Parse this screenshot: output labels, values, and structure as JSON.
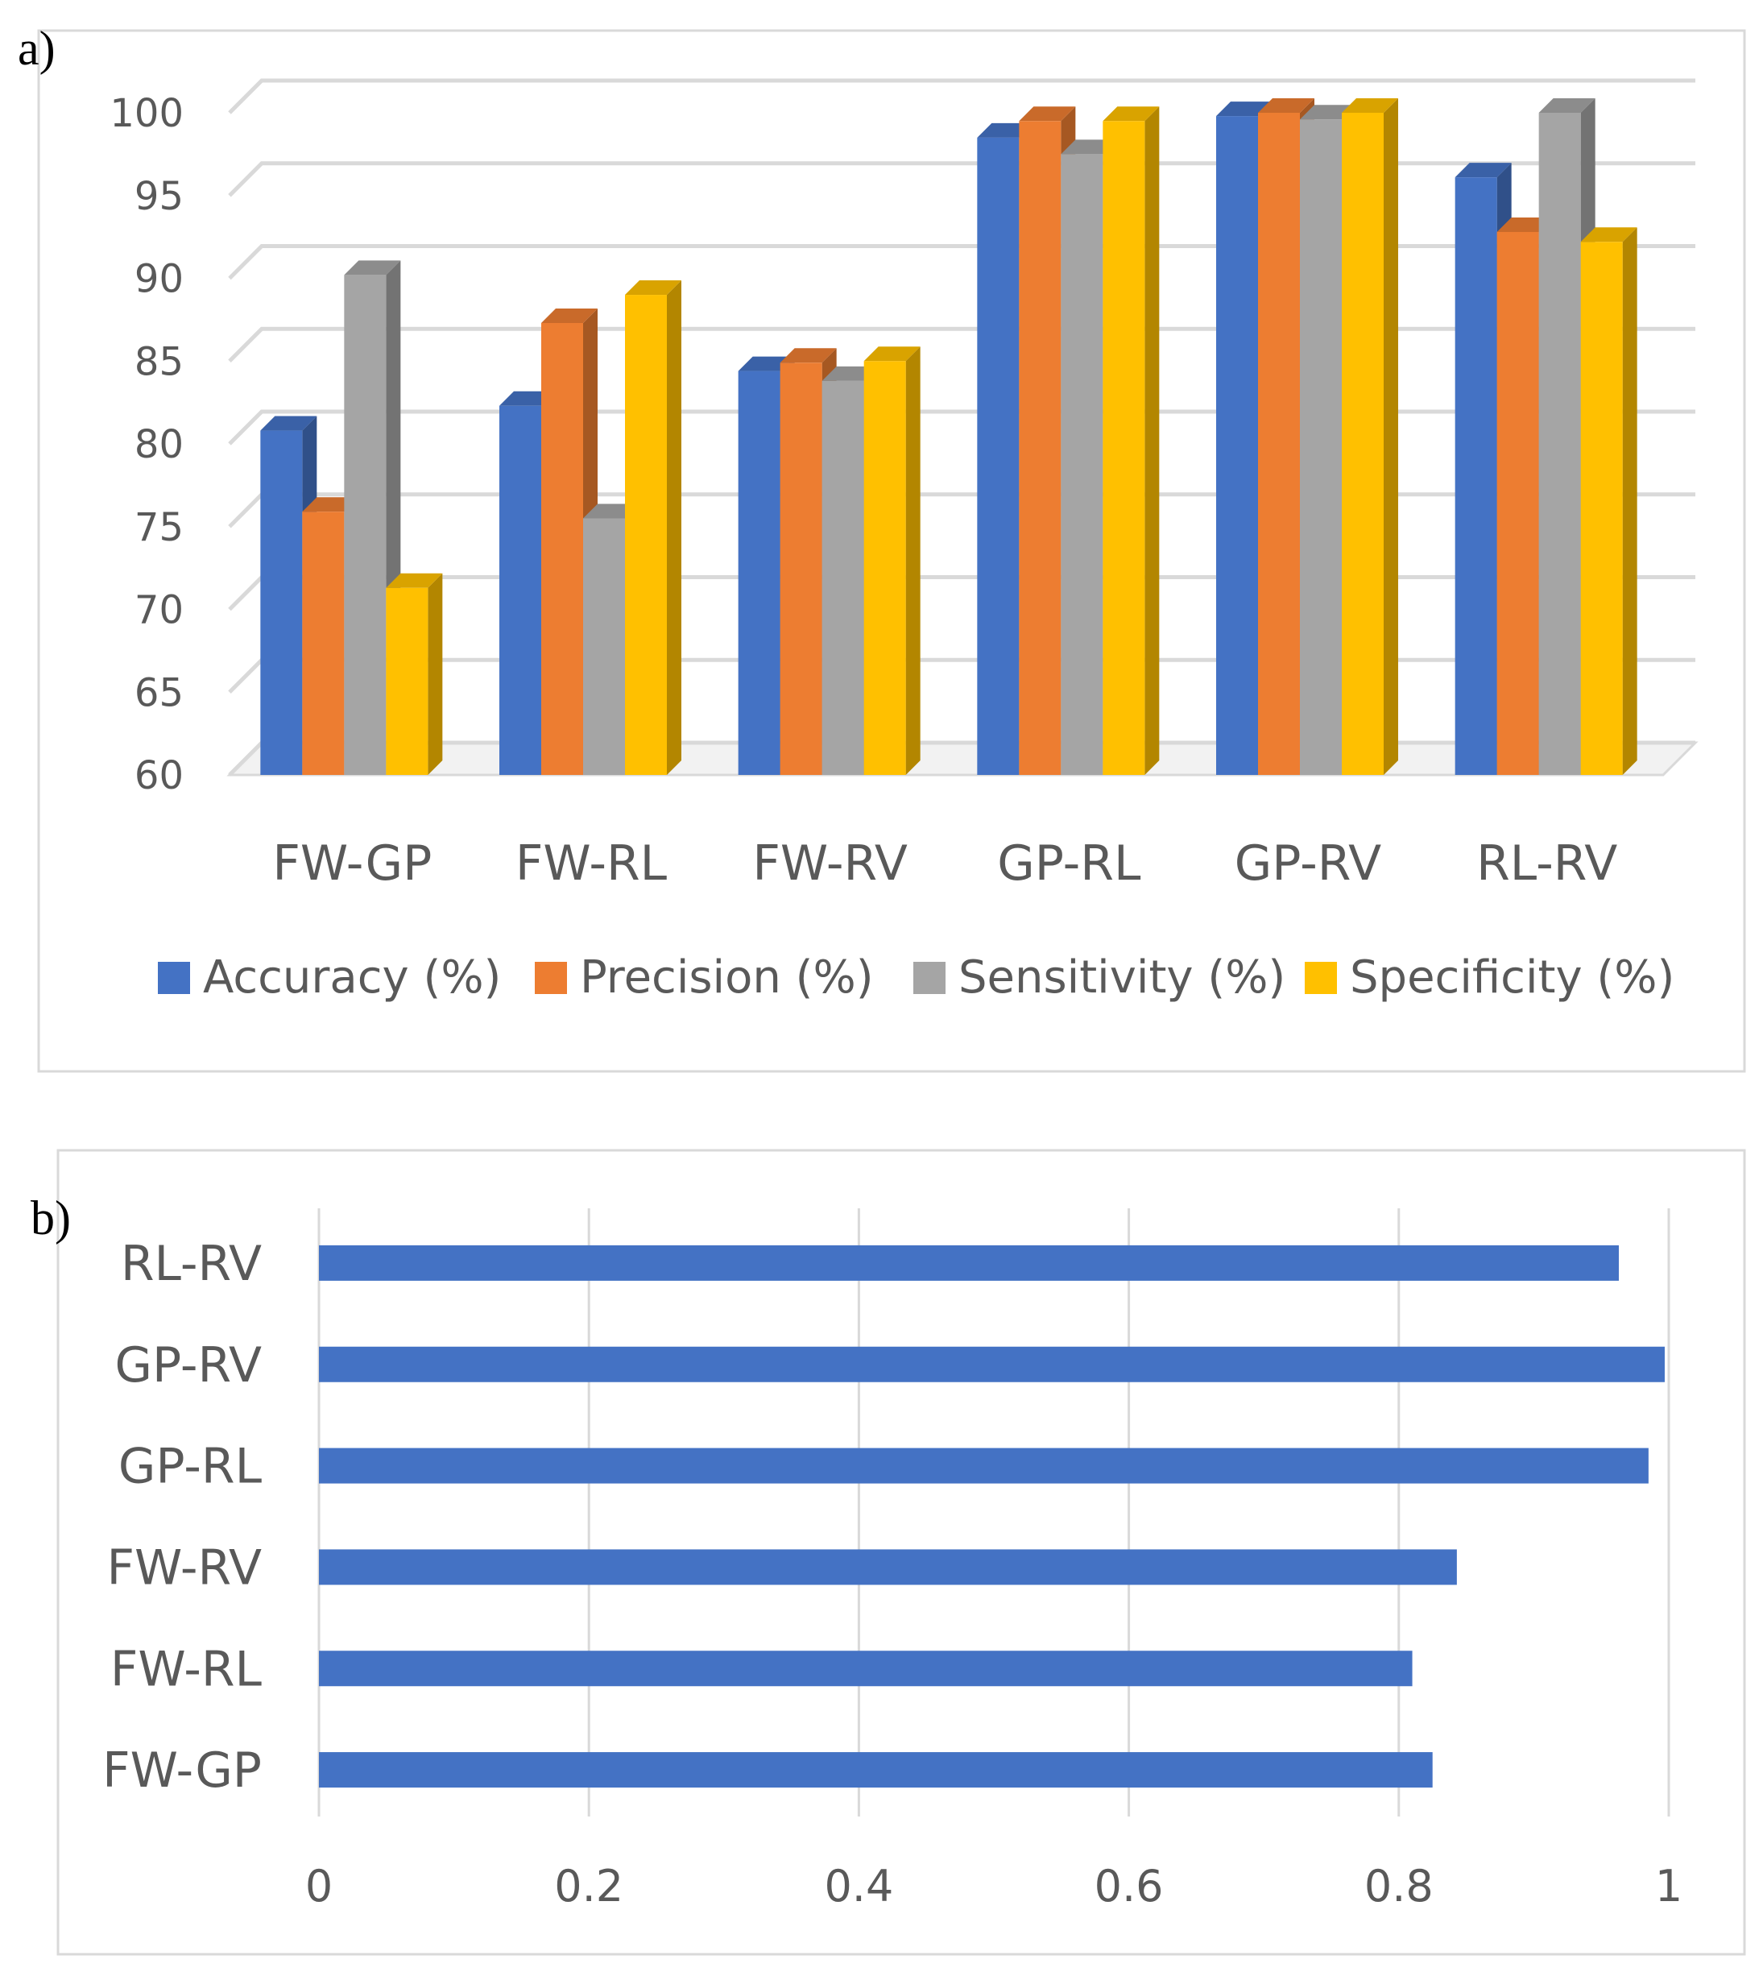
{
  "chart_data": [
    {
      "panel_label": "a)",
      "type": "bar",
      "style": "3d-clustered-column",
      "categories": [
        "FW-GP",
        "FW-RL",
        "FW-RV",
        "GP-RL",
        "GP-RV",
        "RL-RV"
      ],
      "series": [
        {
          "name": "Accuracy  (%)",
          "color": "#4472C4",
          "values": [
            80.8,
            82.3,
            84.4,
            98.5,
            99.8,
            96.1
          ]
        },
        {
          "name": "Precision  (%)",
          "color": "#ED7D31",
          "values": [
            75.9,
            87.3,
            84.9,
            99.5,
            100.0,
            92.8
          ]
        },
        {
          "name": "Sensitivity (%)",
          "color": "#A5A5A5",
          "values": [
            90.2,
            75.5,
            83.8,
            97.5,
            99.6,
            100.0
          ]
        },
        {
          "name": "Specificity (%)",
          "color": "#FFC000",
          "values": [
            71.3,
            89.0,
            85.0,
            99.5,
            100.0,
            92.2
          ]
        }
      ],
      "yticks": [
        "60",
        "65",
        "70",
        "75",
        "80",
        "85",
        "90",
        "95",
        "100"
      ],
      "ylim": [
        60,
        100
      ],
      "grid": true,
      "legend": "bottom"
    },
    {
      "panel_label": "b)",
      "type": "bar",
      "orientation": "horizontal",
      "categories": [
        "RL-RV",
        "GP-RV",
        "GP-RL",
        "FW-RV",
        "FW-RL",
        "FW-GP"
      ],
      "values": [
        0.963,
        0.997,
        0.985,
        0.843,
        0.81,
        0.825
      ],
      "color": "#4472C4",
      "xticks": [
        "0",
        "0.2",
        "0.4",
        "0.6",
        "0.8",
        "1"
      ],
      "xlim": [
        0,
        1
      ],
      "grid": true
    }
  ]
}
